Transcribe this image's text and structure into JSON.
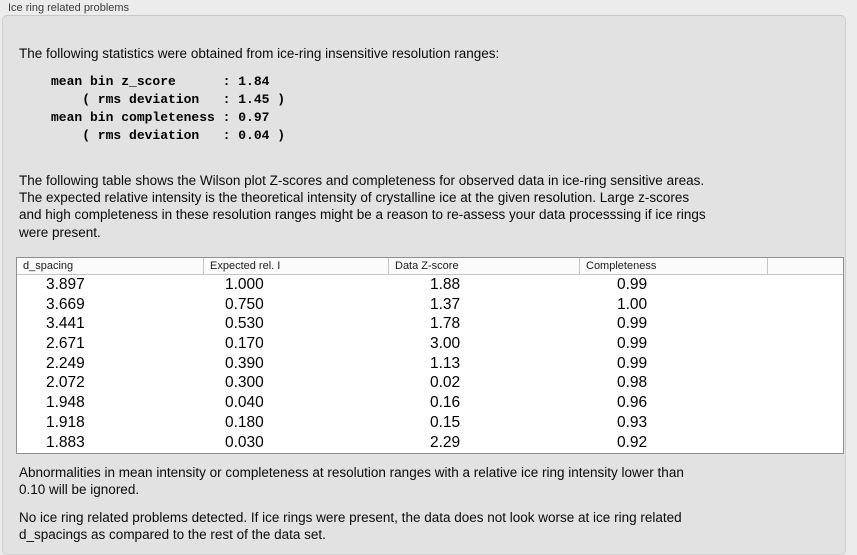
{
  "window": {
    "group_label": "Ice ring related problems"
  },
  "panel": {
    "intro": "The following statistics were obtained from ice-ring insensitive resolution ranges:",
    "stats_block": "mean bin z_score      : 1.84\n    ( rms deviation   : 1.45 )\nmean bin completeness : 0.97\n    ( rms deviation   : 0.04 )",
    "stats": {
      "mean_bin_z_score": "1.84",
      "z_score_rms_deviation": "1.45",
      "mean_bin_completeness": "0.97",
      "completeness_rms_deviation": "0.04"
    },
    "table_description": "The following table shows the Wilson plot Z-scores and completeness for observed data in ice-ring sensitive areas.\nThe expected relative intensity is the theoretical intensity of crystalline ice at the given resolution. Large z-scores\nand high completeness in these resolution ranges might be a reason to re-assess your data processsing if ice rings\nwere present.",
    "table": {
      "headers": [
        "d_spacing",
        "Expected rel. I",
        "Data Z-score",
        "Completeness",
        ""
      ],
      "rows": [
        [
          "3.897",
          "1.000",
          "1.88",
          "0.99"
        ],
        [
          "3.669",
          "0.750",
          "1.37",
          "1.00"
        ],
        [
          "3.441",
          "0.530",
          "1.78",
          "0.99"
        ],
        [
          "2.671",
          "0.170",
          "3.00",
          "0.99"
        ],
        [
          "2.249",
          "0.390",
          "1.13",
          "0.99"
        ],
        [
          "2.072",
          "0.300",
          "0.02",
          "0.98"
        ],
        [
          "1.948",
          "0.040",
          "0.16",
          "0.96"
        ],
        [
          "1.918",
          "0.180",
          "0.15",
          "0.93"
        ],
        [
          "1.883",
          "0.030",
          "2.29",
          "0.92"
        ]
      ]
    },
    "ignore_note": "Abnormalities in mean intensity or completeness at resolution ranges with a relative ice ring intensity lower than\n0.10 will be ignored.",
    "conclusion": "No ice ring related problems detected. If ice rings were present, the data does not look worse at ice ring related\nd_spacings as compared to the rest of the data set."
  },
  "colors": {
    "window_bg": "#ececec",
    "panel_bg": "#e2e2e2",
    "table_border": "#8f8f8f",
    "header_separator": "#c6c6c6"
  }
}
